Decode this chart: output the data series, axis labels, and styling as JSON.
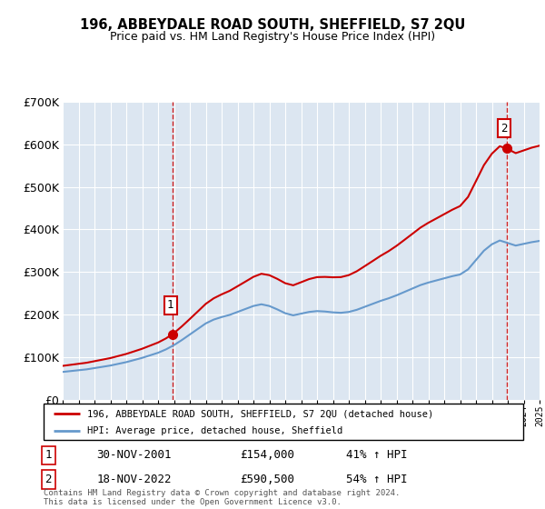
{
  "title": "196, ABBEYDALE ROAD SOUTH, SHEFFIELD, S7 2QU",
  "subtitle": "Price paid vs. HM Land Registry's House Price Index (HPI)",
  "sale1_price": 154000,
  "sale1_text": "30-NOV-2001",
  "sale1_hpi": "41% ↑ HPI",
  "sale2_price": 590500,
  "sale2_text": "18-NOV-2022",
  "sale2_hpi": "54% ↑ HPI",
  "legend_line1": "196, ABBEYDALE ROAD SOUTH, SHEFFIELD, S7 2QU (detached house)",
  "legend_line2": "HPI: Average price, detached house, Sheffield",
  "footer": "Contains HM Land Registry data © Crown copyright and database right 2024.\nThis data is licensed under the Open Government Licence v3.0.",
  "red_color": "#cc0000",
  "blue_color": "#6699cc",
  "bg_color": "#dce6f1",
  "grid_color": "#ffffff",
  "ylim": [
    0,
    700000
  ],
  "yticks": [
    0,
    100000,
    200000,
    300000,
    400000,
    500000,
    600000,
    700000
  ],
  "ytick_labels": [
    "£0",
    "£100K",
    "£200K",
    "£300K",
    "£400K",
    "£500K",
    "£600K",
    "£700K"
  ],
  "xstart": 1995,
  "xend": 2025,
  "years_hpi": [
    1995.0,
    1995.5,
    1996.0,
    1996.5,
    1997.0,
    1997.5,
    1998.0,
    1998.5,
    1999.0,
    1999.5,
    2000.0,
    2000.5,
    2001.0,
    2001.5,
    2002.0,
    2002.5,
    2003.0,
    2003.5,
    2004.0,
    2004.5,
    2005.0,
    2005.5,
    2006.0,
    2006.5,
    2007.0,
    2007.5,
    2008.0,
    2008.5,
    2009.0,
    2009.5,
    2010.0,
    2010.5,
    2011.0,
    2011.5,
    2012.0,
    2012.5,
    2013.0,
    2013.5,
    2014.0,
    2014.5,
    2015.0,
    2015.5,
    2016.0,
    2016.5,
    2017.0,
    2017.5,
    2018.0,
    2018.5,
    2019.0,
    2019.5,
    2020.0,
    2020.5,
    2021.0,
    2021.5,
    2022.0,
    2022.5,
    2023.0,
    2023.5,
    2024.0,
    2024.5,
    2025.0
  ],
  "hpi_values": [
    65000,
    67000,
    69000,
    71000,
    74000,
    77000,
    80000,
    84000,
    88000,
    93000,
    98000,
    104000,
    110000,
    118000,
    128000,
    140000,
    153000,
    166000,
    179000,
    188000,
    194000,
    199000,
    206000,
    213000,
    220000,
    224000,
    220000,
    212000,
    203000,
    198000,
    202000,
    206000,
    208000,
    207000,
    205000,
    204000,
    206000,
    211000,
    218000,
    225000,
    232000,
    238000,
    245000,
    253000,
    261000,
    269000,
    275000,
    280000,
    285000,
    290000,
    294000,
    306000,
    328000,
    350000,
    365000,
    374000,
    368000,
    362000,
    366000,
    370000,
    373000
  ]
}
